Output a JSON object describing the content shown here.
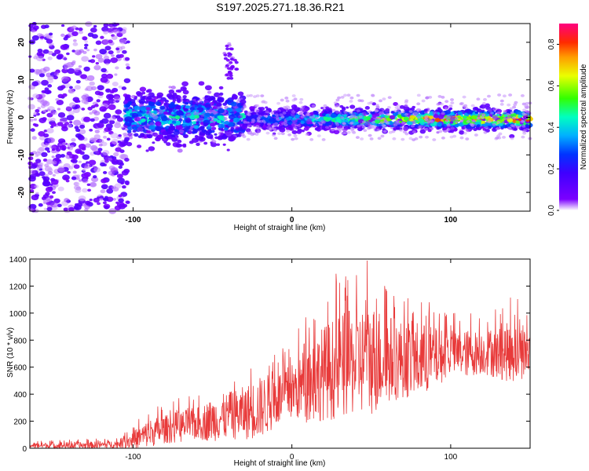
{
  "figure_title": "S197.2025.271.18.36.R21",
  "colors": {
    "snr_line": "#e83a3a",
    "background": "#ffffff",
    "axes": "#000000"
  },
  "chart_data": [
    {
      "type": "heatmap",
      "title": "S197.2025.271.18.36.R21",
      "xlabel": "Height of straight line (km)",
      "ylabel": "Frequency (Hz)",
      "xlim": [
        -165,
        150
      ],
      "ylim": [
        -25,
        25
      ],
      "xticks": [
        -100,
        0,
        100
      ],
      "xtick_labels": [
        "-100",
        "0",
        "100"
      ],
      "yticks": [
        -20,
        -10,
        0,
        10,
        20
      ],
      "ytick_labels": [
        "-20",
        "-10",
        "0",
        "10",
        "20"
      ],
      "colorbar": {
        "label": "Normalized spectral amplitude",
        "range": [
          0,
          0.9
        ],
        "ticks": [
          0.0,
          0.2,
          0.4,
          0.6,
          0.8
        ],
        "tick_labels": [
          "0.0",
          "0.2",
          "0.4",
          "0.6",
          "0.8"
        ],
        "colormap": "rainbow (violet-blue-cyan-green-yellow-red-magenta)"
      },
      "description_of_field": [
        {
          "x_range": [
            -165,
            -105
          ],
          "freq_center": 0,
          "freq_spread": 25,
          "amplitude": "low (0.0-0.2), scattered"
        },
        {
          "x_range": [
            -105,
            -30
          ],
          "freq_center": 0,
          "freq_spread": 6,
          "amplitude": "0.1-0.4"
        },
        {
          "x_range": [
            -30,
            150
          ],
          "freq_center": -0.5,
          "freq_spread": 2.5,
          "amplitude": "0.2-0.9, strongest near x=75-150"
        }
      ]
    },
    {
      "type": "line",
      "xlabel": "Height of straight line (km)",
      "ylabel": "SNR (10 * v/v)",
      "xlim": [
        -165,
        150
      ],
      "ylim": [
        0,
        1400
      ],
      "xticks": [
        -100,
        0,
        100
      ],
      "xtick_labels": [
        "-100",
        "0",
        "100"
      ],
      "yticks": [
        0,
        200,
        400,
        600,
        800,
        1000,
        1200,
        1400
      ],
      "ytick_labels": [
        "0",
        "200",
        "400",
        "600",
        "800",
        "1000",
        "1200",
        "1400"
      ],
      "series": [
        {
          "name": "SNR",
          "envelope_x": [
            -165,
            -130,
            -110,
            -100,
            -90,
            -80,
            -70,
            -60,
            -50,
            -40,
            -30,
            -20,
            -10,
            0,
            10,
            20,
            30,
            40,
            50,
            60,
            70,
            80,
            90,
            100,
            110,
            120,
            130,
            140,
            150
          ],
          "envelope_mean": [
            20,
            20,
            30,
            60,
            110,
            140,
            160,
            180,
            210,
            240,
            260,
            300,
            360,
            420,
            480,
            560,
            600,
            640,
            660,
            660,
            660,
            650,
            670,
            700,
            700,
            710,
            700,
            720,
            700
          ],
          "envelope_max": [
            60,
            70,
            80,
            180,
            300,
            330,
            380,
            400,
            500,
            560,
            620,
            720,
            740,
            800,
            1020,
            1200,
            1320,
            1350,
            1430,
            1280,
            1180,
            1180,
            1080,
            1000,
            1020,
            1000,
            1050,
            1150,
            1000
          ]
        }
      ]
    }
  ]
}
